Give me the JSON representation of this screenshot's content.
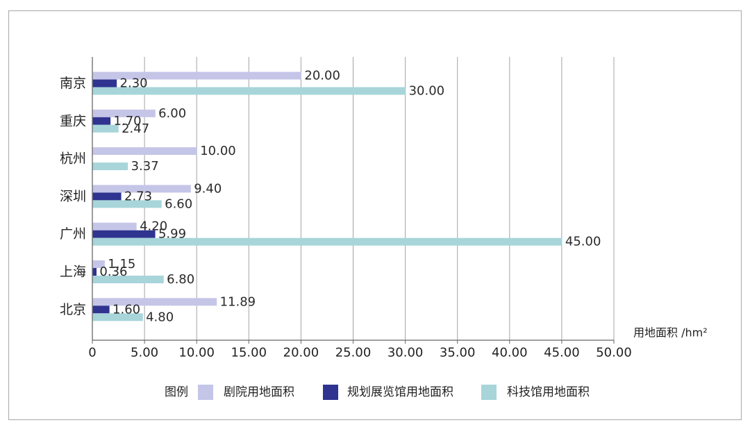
{
  "chart_data": {
    "type": "bar",
    "orientation": "horizontal",
    "categories": [
      "南京",
      "重庆",
      "杭州",
      "深圳",
      "广州",
      "上海",
      "北京"
    ],
    "series": [
      {
        "name": "剧院用地面积",
        "color": "#c5c5e8",
        "values": [
          20.0,
          6.0,
          10.0,
          9.4,
          4.2,
          1.15,
          11.89
        ],
        "labels": [
          "20.00",
          "6.00",
          "10.00",
          "9.40",
          "4.20",
          "1.15",
          "11.89"
        ]
      },
      {
        "name": "规划展览馆用地面积",
        "color": "#2f3490",
        "values": [
          2.3,
          1.7,
          null,
          2.73,
          5.99,
          0.36,
          1.6
        ],
        "labels": [
          "2.30",
          "1.70",
          null,
          "2.73",
          "5.99",
          "0.36",
          "1.60"
        ]
      },
      {
        "name": "科技馆用地面积",
        "color": "#a7d5da",
        "values": [
          30.0,
          2.47,
          3.37,
          6.6,
          45.0,
          6.8,
          4.8
        ],
        "labels": [
          "30.00",
          "2.47",
          "3.37",
          "6.60",
          "45.00",
          "6.80",
          "4.80"
        ]
      }
    ],
    "xlim": [
      0,
      50
    ],
    "xticks": [
      0,
      5,
      10,
      15,
      20,
      25,
      30,
      35,
      40,
      45,
      50
    ],
    "xtick_labels": [
      "0",
      "5.00",
      "10.00",
      "15.00",
      "20.00",
      "25.00",
      "30.00",
      "35.00",
      "40.00",
      "45.00",
      "50.00"
    ],
    "xlabel": "用地面积 /hm²",
    "legend": {
      "title": "图例",
      "position": "bottom"
    },
    "grid": "vertical"
  }
}
